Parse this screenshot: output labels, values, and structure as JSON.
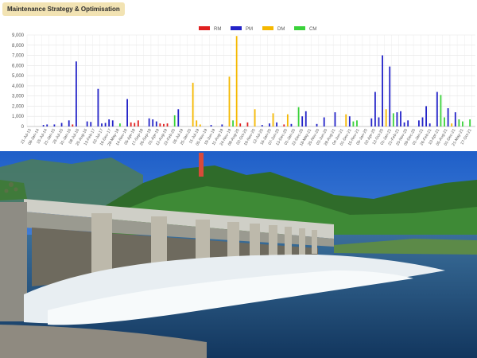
{
  "header": {
    "title": "Maintenance Strategy & Optimisation"
  },
  "chart_data": {
    "type": "bar",
    "ylim": [
      0,
      9000
    ],
    "yticks": [
      "0",
      "1,000",
      "2,000",
      "3,000",
      "4,000",
      "5,000",
      "6,000",
      "7,000",
      "8,000",
      "9,000"
    ],
    "grid": true,
    "legend_position": "top-center",
    "series": [
      {
        "name": "RM",
        "color": "#e02020"
      },
      {
        "name": "PM",
        "color": "#2323c8"
      },
      {
        "name": "DM",
        "color": "#f5b800"
      },
      {
        "name": "CM",
        "color": "#3ad23a"
      }
    ],
    "categories": [
      "21-Jul-13",
      "08-Jan-14",
      "15-Jul-14",
      "21-Jan-15",
      "25-Jul-15",
      "31-Jan-16",
      "08-Jul-16",
      "25-Aug-16",
      "13-Feb-17",
      "02-Jul-17",
      "16-Dec-17",
      "28-May-18",
      "14-Nov-18",
      "05-Apr-18",
      "17-Sep-18",
      "26-Sep-18",
      "01-Apr-19",
      "12-Aug-19",
      "22-Feb-20",
      "05-Jul-19",
      "25-Jan-20",
      "11-Jul-19",
      "05-Nov-19",
      "19-Jun-19",
      "11-Aug-19",
      "24-Nov-19",
      "08-Aug-20",
      "02-Oct-20",
      "19-Nov-20",
      "12-Jul-20",
      "16-Jan-20",
      "07-Jun-20",
      "13-Dec-20",
      "01-Jan-20",
      "22-Dec-20",
      "18-May-21",
      "25-Nov-20",
      "03-Jun-20",
      "28-Aug-21",
      "04-Jun-21",
      "01-Dec-21",
      "15-Nov-21",
      "05-Jan-20",
      "02-Apr-20",
      "12-Oct-20",
      "01-Jan-21",
      "21-Feb-21",
      "20-Nov-20",
      "09-Dec-20",
      "01-Jan-21",
      "26-Feb-21",
      "10-Apr-21",
      "05-Aug-21",
      "01-Dec-21",
      "21-May-21",
      "17-Oct-21"
    ],
    "bars": [
      {
        "x": 4,
        "series": "PM",
        "value": 150
      },
      {
        "x": 5,
        "series": "PM",
        "value": 200
      },
      {
        "x": 7,
        "series": "PM",
        "value": 200
      },
      {
        "x": 9,
        "series": "PM",
        "value": 350
      },
      {
        "x": 11,
        "series": "PM",
        "value": 600
      },
      {
        "x": 12,
        "series": "RM",
        "value": 200
      },
      {
        "x": 13,
        "series": "PM",
        "value": 6400
      },
      {
        "x": 16,
        "series": "PM",
        "value": 500
      },
      {
        "x": 17,
        "series": "PM",
        "value": 450
      },
      {
        "x": 19,
        "series": "PM",
        "value": 3700
      },
      {
        "x": 20,
        "series": "PM",
        "value": 300
      },
      {
        "x": 21,
        "series": "PM",
        "value": 350
      },
      {
        "x": 22,
        "series": "PM",
        "value": 700
      },
      {
        "x": 23,
        "series": "PM",
        "value": 600
      },
      {
        "x": 25,
        "series": "CM",
        "value": 300
      },
      {
        "x": 27,
        "series": "PM",
        "value": 2700
      },
      {
        "x": 28,
        "series": "RM",
        "value": 400
      },
      {
        "x": 29,
        "series": "RM",
        "value": 350
      },
      {
        "x": 30,
        "series": "RM",
        "value": 600
      },
      {
        "x": 33,
        "series": "PM",
        "value": 800
      },
      {
        "x": 34,
        "series": "PM",
        "value": 700
      },
      {
        "x": 35,
        "series": "PM",
        "value": 500
      },
      {
        "x": 36,
        "series": "RM",
        "value": 300
      },
      {
        "x": 37,
        "series": "RM",
        "value": 250
      },
      {
        "x": 38,
        "series": "RM",
        "value": 300
      },
      {
        "x": 40,
        "series": "CM",
        "value": 1100
      },
      {
        "x": 41,
        "series": "PM",
        "value": 1700
      },
      {
        "x": 45,
        "series": "DM",
        "value": 4300
      },
      {
        "x": 46,
        "series": "DM",
        "value": 600
      },
      {
        "x": 47,
        "series": "DM",
        "value": 200
      },
      {
        "x": 50,
        "series": "PM",
        "value": 150
      },
      {
        "x": 53,
        "series": "PM",
        "value": 200
      },
      {
        "x": 55,
        "series": "DM",
        "value": 4900
      },
      {
        "x": 56,
        "series": "CM",
        "value": 600
      },
      {
        "x": 57,
        "series": "DM",
        "value": 8900
      },
      {
        "x": 58,
        "series": "RM",
        "value": 300
      },
      {
        "x": 60,
        "series": "RM",
        "value": 400
      },
      {
        "x": 62,
        "series": "DM",
        "value": 1700
      },
      {
        "x": 64,
        "series": "PM",
        "value": 150
      },
      {
        "x": 66,
        "series": "PM",
        "value": 300
      },
      {
        "x": 67,
        "series": "DM",
        "value": 1300
      },
      {
        "x": 68,
        "series": "PM",
        "value": 400
      },
      {
        "x": 70,
        "series": "RM",
        "value": 200
      },
      {
        "x": 71,
        "series": "DM",
        "value": 1200
      },
      {
        "x": 72,
        "series": "PM",
        "value": 250
      },
      {
        "x": 74,
        "series": "CM",
        "value": 1900
      },
      {
        "x": 75,
        "series": "PM",
        "value": 1000
      },
      {
        "x": 76,
        "series": "PM",
        "value": 1500
      },
      {
        "x": 79,
        "series": "PM",
        "value": 250
      },
      {
        "x": 81,
        "series": "PM",
        "value": 900
      },
      {
        "x": 84,
        "series": "PM",
        "value": 1400
      },
      {
        "x": 87,
        "series": "DM",
        "value": 1200
      },
      {
        "x": 88,
        "series": "PM",
        "value": 1000
      },
      {
        "x": 89,
        "series": "CM",
        "value": 500
      },
      {
        "x": 90,
        "series": "CM",
        "value": 600
      },
      {
        "x": 94,
        "series": "PM",
        "value": 800
      },
      {
        "x": 95,
        "series": "PM",
        "value": 3400
      },
      {
        "x": 96,
        "series": "PM",
        "value": 900
      },
      {
        "x": 97,
        "series": "PM",
        "value": 7000
      },
      {
        "x": 98,
        "series": "DM",
        "value": 1700
      },
      {
        "x": 99,
        "series": "PM",
        "value": 5900
      },
      {
        "x": 100,
        "series": "CM",
        "value": 1300
      },
      {
        "x": 101,
        "series": "PM",
        "value": 1400
      },
      {
        "x": 102,
        "series": "PM",
        "value": 1500
      },
      {
        "x": 103,
        "series": "PM",
        "value": 400
      },
      {
        "x": 104,
        "series": "PM",
        "value": 600
      },
      {
        "x": 107,
        "series": "PM",
        "value": 600
      },
      {
        "x": 108,
        "series": "PM",
        "value": 900
      },
      {
        "x": 109,
        "series": "PM",
        "value": 2000
      },
      {
        "x": 110,
        "series": "PM",
        "value": 300
      },
      {
        "x": 112,
        "series": "PM",
        "value": 3400
      },
      {
        "x": 113,
        "series": "CM",
        "value": 3100
      },
      {
        "x": 114,
        "series": "CM",
        "value": 900
      },
      {
        "x": 115,
        "series": "PM",
        "value": 1800
      },
      {
        "x": 116,
        "series": "DM",
        "value": 300
      },
      {
        "x": 117,
        "series": "PM",
        "value": 1400
      },
      {
        "x": 118,
        "series": "CM",
        "value": 700
      },
      {
        "x": 119,
        "series": "CM",
        "value": 500
      },
      {
        "x": 121,
        "series": "CM",
        "value": 700
      }
    ]
  }
}
